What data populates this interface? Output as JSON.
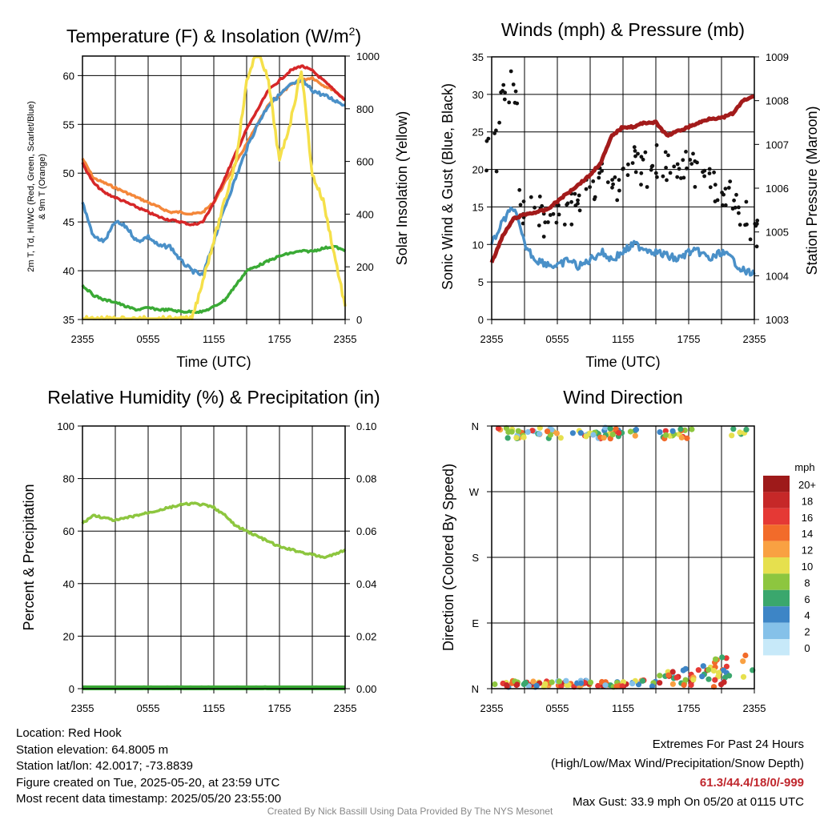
{
  "panels": {
    "temperature": {
      "title": "Temperature (F) & Insolation (W/m²)",
      "xlabel": "Time (UTC)",
      "ylabel_left_1": "2m T, Td, HI/WC (Red, Green, Scarlet/Blue)",
      "ylabel_left_2": "& 9m T (Orange)",
      "ylabel_right": "Solar Insolation (Yellow)"
    },
    "winds": {
      "title": "Winds (mph) & Pressure (mb)",
      "xlabel": "Time (UTC)",
      "ylabel_left": "Sonic Wind & Gust (Blue, Black)",
      "ylabel_right": "Station Pressure (Maroon)"
    },
    "humidity": {
      "title": "Relative Humidity (%) & Precipitation (in)",
      "ylabel_left": "Percent & Precipitation"
    },
    "direction": {
      "title": "Wind Direction",
      "ylabel_left": "Direction (Colored By Speed)",
      "legend_unit": "mph"
    }
  },
  "chart_data": [
    {
      "type": "line",
      "title": "Temperature (F) & Insolation (W/m²)",
      "x_ticks": [
        "2355",
        "0555",
        "1155",
        "1755",
        "2355"
      ],
      "xlabel": "Time (UTC)",
      "ylim": [
        35,
        62
      ],
      "y_ticks": [
        35,
        40,
        45,
        50,
        55,
        60
      ],
      "y2lim": [
        0,
        1000
      ],
      "y2_ticks": [
        0,
        200,
        400,
        600,
        800,
        1000
      ],
      "x_hours": [
        0,
        1,
        2,
        3,
        4,
        5,
        6,
        7,
        8,
        9,
        10,
        11,
        12,
        13,
        14,
        15,
        16,
        17,
        18,
        19,
        20,
        21,
        22,
        23,
        24
      ],
      "series": [
        {
          "name": "9m T (Orange)",
          "color": "#f4873a",
          "values": [
            51.5,
            49.5,
            49,
            48.5,
            48,
            47.5,
            47,
            46.5,
            46,
            46,
            45.8,
            46,
            47,
            49,
            51,
            53,
            55,
            57,
            58,
            59,
            59.5,
            59.8,
            59,
            58.5,
            57.5
          ]
        },
        {
          "name": "2m T (Red)",
          "color": "#d62728",
          "values": [
            51,
            49,
            48,
            47.5,
            47,
            46.5,
            46,
            45.5,
            45.2,
            45,
            44.7,
            45,
            47,
            49.5,
            52,
            54.5,
            56.5,
            58.5,
            59.5,
            60.5,
            61,
            60.5,
            59.5,
            58.5,
            57.5
          ]
        },
        {
          "name": "HI/WC (Blue)",
          "color": "#4a90c8",
          "values": [
            47,
            43.5,
            43,
            45,
            44.5,
            43,
            43.5,
            42.5,
            42.5,
            41,
            40,
            39.5,
            43,
            46.5,
            49.5,
            52.5,
            55,
            57,
            58,
            59,
            59.5,
            58.5,
            58,
            57.5,
            57
          ]
        },
        {
          "name": "Td (Green)",
          "color": "#3aaa35",
          "values": [
            38.5,
            37.5,
            37,
            36.8,
            36.3,
            36,
            36.2,
            36,
            36,
            35.8,
            35.8,
            35.8,
            36.3,
            37,
            38.5,
            40,
            40.5,
            41,
            41.5,
            41.8,
            42,
            42,
            42.3,
            42.5,
            42
          ]
        },
        {
          "name": "Solar Insolation (Yellow)",
          "color": "#f5e04a",
          "axis": "right",
          "values": [
            0,
            0,
            0,
            0,
            0,
            0,
            0,
            0,
            0,
            0,
            0,
            150,
            300,
            450,
            600,
            900,
            1040,
            900,
            600,
            750,
            950,
            550,
            450,
            250,
            50
          ]
        }
      ]
    },
    {
      "type": "line",
      "title": "Winds (mph) & Pressure (mb)",
      "x_ticks": [
        "2355",
        "0555",
        "1155",
        "1755",
        "2355"
      ],
      "xlabel": "Time (UTC)",
      "ylim": [
        0,
        35
      ],
      "y_ticks": [
        0,
        5,
        10,
        15,
        20,
        25,
        30,
        35
      ],
      "y2lim": [
        1003,
        1009
      ],
      "y2_ticks": [
        1003,
        1004,
        1005,
        1006,
        1007,
        1008,
        1009
      ],
      "x_hours": [
        0,
        1,
        2,
        3,
        4,
        5,
        6,
        7,
        8,
        9,
        10,
        11,
        12,
        13,
        14,
        15,
        16,
        17,
        18,
        19,
        20,
        21,
        22,
        23,
        24
      ],
      "series": [
        {
          "name": "Sonic Wind (Blue)",
          "color": "#4a90c8",
          "values": [
            10,
            13,
            15,
            10,
            8,
            7.5,
            7,
            8,
            7,
            8,
            9,
            8,
            9,
            10,
            9.5,
            9,
            8.5,
            8,
            9,
            9,
            8,
            9,
            8,
            6.5,
            6
          ]
        },
        {
          "name": "Gust (Black)",
          "color": "#111111",
          "style": "points",
          "values": [
            22,
            29,
            30,
            15,
            14,
            13,
            14,
            15,
            16,
            17,
            19,
            18,
            19,
            21,
            20,
            21,
            20,
            19,
            20,
            19,
            18,
            17,
            16,
            14,
            12
          ]
        },
        {
          "name": "Station Pressure (Maroon)",
          "color": "#a31b1b",
          "axis": "right",
          "values": [
            1004.3,
            1004.9,
            1005.3,
            1005.4,
            1005.45,
            1005.5,
            1005.7,
            1005.9,
            1006.1,
            1006.3,
            1006.6,
            1007.2,
            1007.4,
            1007.4,
            1007.5,
            1007.5,
            1007.2,
            1007.3,
            1007.4,
            1007.5,
            1007.6,
            1007.6,
            1007.7,
            1008.0,
            1008.1
          ]
        }
      ]
    },
    {
      "type": "line",
      "title": "Relative Humidity (%) & Precipitation (in)",
      "x_ticks": [
        "2355",
        "0555",
        "1155",
        "1755",
        "2355"
      ],
      "ylim": [
        0,
        100
      ],
      "y_ticks": [
        0,
        20,
        40,
        60,
        80,
        100
      ],
      "y2lim": [
        0,
        0.1
      ],
      "y2_ticks": [
        "0.00",
        "0.02",
        "0.04",
        "0.06",
        "0.08",
        "0.10"
      ],
      "x_hours": [
        0,
        1,
        2,
        3,
        4,
        5,
        6,
        7,
        8,
        9,
        10,
        11,
        12,
        13,
        14,
        15,
        16,
        17,
        18,
        19,
        20,
        21,
        22,
        23,
        24
      ],
      "series": [
        {
          "name": "Relative Humidity",
          "color": "#8dc63f",
          "values": [
            63,
            66,
            65,
            64,
            65,
            66,
            67,
            68,
            69,
            70,
            70.5,
            70,
            69,
            66,
            62,
            60,
            58,
            56,
            54,
            53,
            52,
            51,
            50,
            51,
            53
          ]
        },
        {
          "name": "Precipitation",
          "color": "#3aaa35",
          "axis": "right",
          "values": [
            0,
            0,
            0,
            0,
            0,
            0,
            0,
            0,
            0,
            0,
            0,
            0,
            0,
            0,
            0,
            0,
            0,
            0,
            0,
            0,
            0,
            0,
            0,
            0,
            0
          ]
        }
      ]
    },
    {
      "type": "scatter",
      "title": "Wind Direction",
      "x_ticks": [
        "2355",
        "0555",
        "1155",
        "1755",
        "2355"
      ],
      "y_ticks": [
        "N",
        "E",
        "S",
        "W",
        "N"
      ],
      "legend_unit": "mph",
      "legend": [
        {
          "label": "20+",
          "color": "#9e1a1a"
        },
        {
          "label": "18",
          "color": "#c62828"
        },
        {
          "label": "16",
          "color": "#e53935"
        },
        {
          "label": "14",
          "color": "#f26b2a"
        },
        {
          "label": "12",
          "color": "#f9a142"
        },
        {
          "label": "10",
          "color": "#e6e04e"
        },
        {
          "label": "8",
          "color": "#8dc63f"
        },
        {
          "label": "6",
          "color": "#3aa76d"
        },
        {
          "label": "4",
          "color": "#3d85c6"
        },
        {
          "label": "2",
          "color": "#85c1e9"
        },
        {
          "label": "0",
          "color": "#c7e9f9"
        }
      ]
    }
  ],
  "station_info": {
    "location": "Location: Red Hook",
    "elevation": "Station elevation: 64.8005 m",
    "latlon": "Station lat/lon: 42.0017; -73.8839",
    "created": "Figure created on Tue, 2025-05-20, at 23:59 UTC",
    "recent": "Most recent data timestamp: 2025/05/20 23:55:00"
  },
  "extremes": {
    "heading": "Extremes For Past 24 Hours",
    "subheading": "(High/Low/Max Wind/Precipitation/Snow Depth)",
    "values": "61.3/44.4/18/0/-999",
    "max_gust": "Max Gust: 33.9 mph On 05/20 at 0115 UTC"
  },
  "credit": "Created By Nick Bassill Using Data Provided By The NYS Mesonet"
}
